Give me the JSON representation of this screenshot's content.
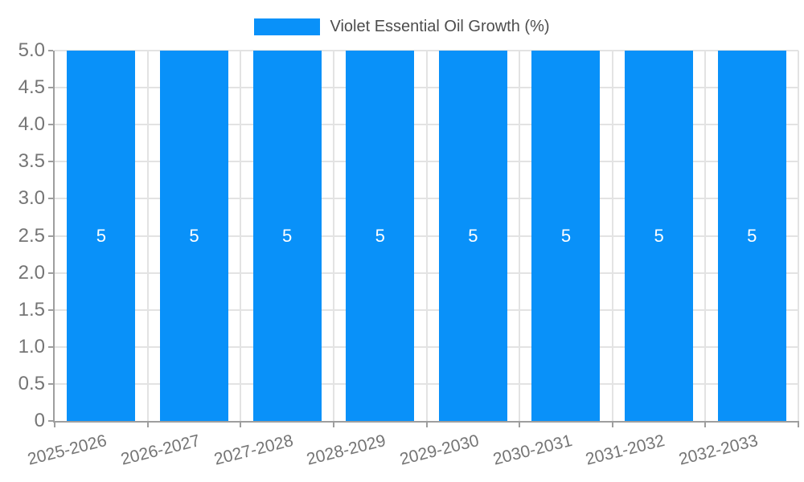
{
  "legend": {
    "label": "Violet Essential Oil Growth (%)"
  },
  "chart_data": {
    "type": "bar",
    "title": "",
    "xlabel": "",
    "ylabel": "",
    "categories": [
      "2025-2026",
      "2026-2027",
      "2027-2028",
      "2028-2029",
      "2029-2030",
      "2030-2031",
      "2031-2032",
      "2032-2033"
    ],
    "series": [
      {
        "name": "Violet Essential Oil Growth (%)",
        "values": [
          5,
          5,
          5,
          5,
          5,
          5,
          5,
          5
        ]
      }
    ],
    "value_labels": [
      "5",
      "5",
      "5",
      "5",
      "5",
      "5",
      "5",
      "5"
    ],
    "ylim": [
      0,
      5
    ],
    "ytick_step": 0.5,
    "ytick_labels": [
      "0",
      "0.5",
      "1.0",
      "1.5",
      "2.0",
      "2.5",
      "3.0",
      "3.5",
      "4.0",
      "4.5",
      "5.0"
    ],
    "grid": true,
    "legend_position": "top",
    "colors": {
      "bar": "#0991f9",
      "grid": "#e3e3e3",
      "axis": "#9e9e9e",
      "tick_text": "#757575",
      "legend_text": "#4d4d4d",
      "value_label": "#ffffff",
      "background": "#ffffff"
    }
  }
}
